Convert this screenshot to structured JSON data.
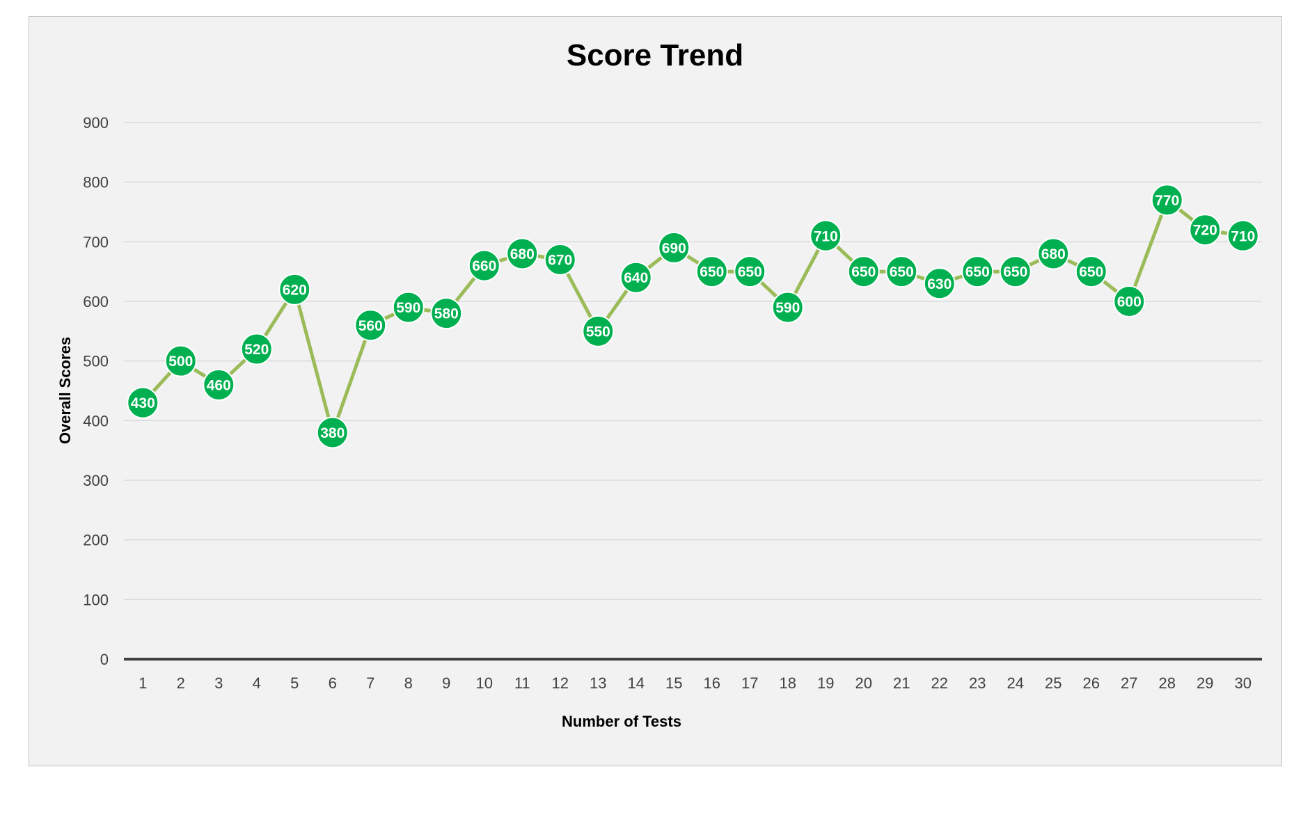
{
  "chart_data": {
    "type": "line",
    "title": "Score Trend",
    "xlabel": "Number of Tests",
    "ylabel": "Overall Scores",
    "x": [
      1,
      2,
      3,
      4,
      5,
      6,
      7,
      8,
      9,
      10,
      11,
      12,
      13,
      14,
      15,
      16,
      17,
      18,
      19,
      20,
      21,
      22,
      23,
      24,
      25,
      26,
      27,
      28,
      29,
      30
    ],
    "y": [
      430,
      500,
      460,
      520,
      620,
      380,
      560,
      590,
      580,
      660,
      680,
      670,
      550,
      640,
      690,
      650,
      650,
      590,
      710,
      650,
      650,
      630,
      650,
      650,
      680,
      650,
      600,
      770,
      720,
      710
    ],
    "ylim": [
      0,
      900
    ],
    "yticks": [
      0,
      100,
      200,
      300,
      400,
      500,
      600,
      700,
      800,
      900
    ],
    "grid": true,
    "legend": "none",
    "data_labels": true,
    "colors": {
      "line": "#9bbb59",
      "marker": "#00b050",
      "marker_edge": "#ffffff",
      "label_text": "#ffffff",
      "gridline": "#d9d9d9",
      "baseline": "#404040",
      "background": "#f2f2f2"
    }
  }
}
